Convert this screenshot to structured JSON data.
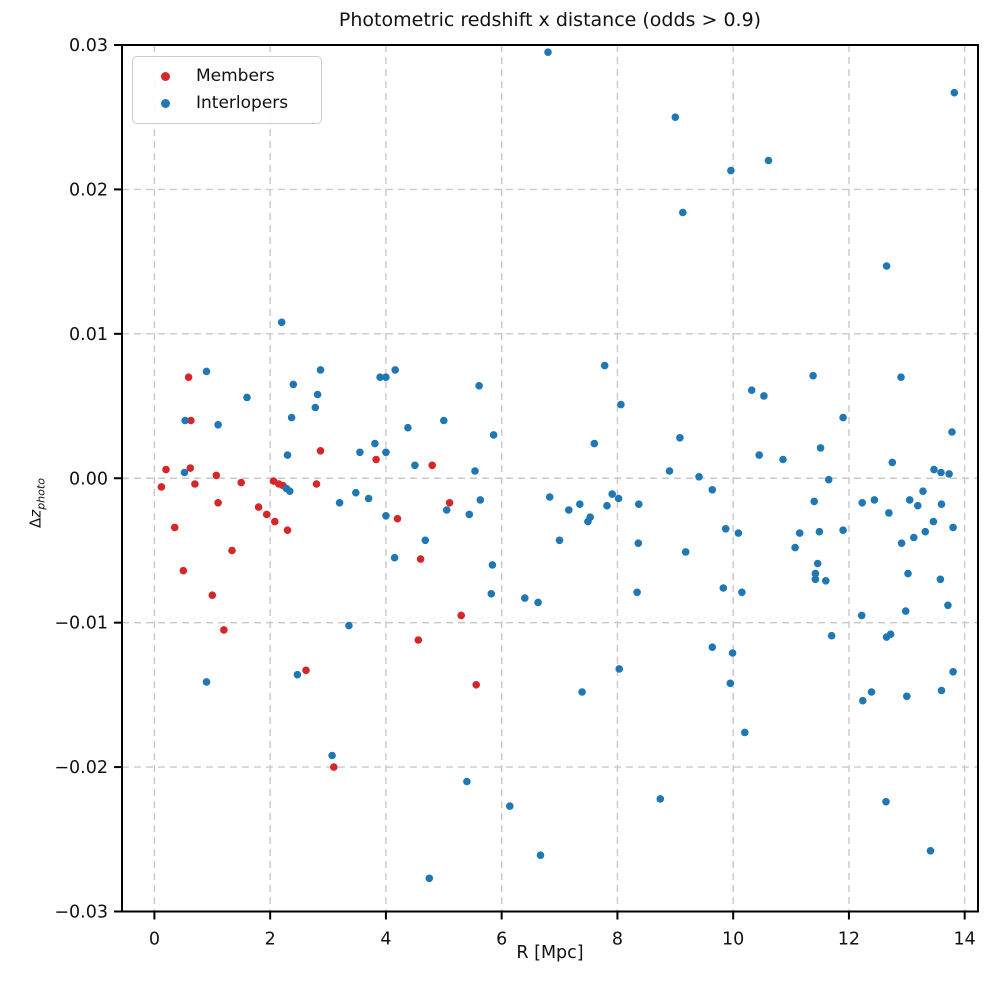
{
  "title": "Photometric redshift x distance (odds > 0.9)",
  "colors": {
    "members": "#d62728",
    "interlopers": "#1f77b4",
    "grid": "#c9c9c9",
    "axis": "#000000",
    "text": "#111111",
    "background": "#ffffff"
  },
  "chart_data": {
    "type": "scatter",
    "title": "Photometric redshift x distance (odds > 0.9)",
    "xlabel": "R [Mpc]",
    "ylabel_delta": "Δ",
    "ylabel_var": "z",
    "ylabel_subscript": "photo",
    "xlim": [
      -0.56,
      14.23
    ],
    "ylim": [
      -0.03,
      0.03
    ],
    "xticks": [
      0,
      2,
      4,
      6,
      8,
      10,
      12,
      14
    ],
    "xtick_labels": [
      "0",
      "2",
      "4",
      "6",
      "8",
      "10",
      "12",
      "14"
    ],
    "yticks": [
      -0.03,
      -0.02,
      -0.01,
      0.0,
      0.01,
      0.02,
      0.03
    ],
    "ytick_labels": [
      "−0.03",
      "−0.02",
      "−0.01",
      "0.00",
      "0.01",
      "0.02",
      "0.03"
    ],
    "grid": true,
    "grid_style": "dashed",
    "legend_position": "upper-left",
    "marker_radius": 3.8,
    "series": [
      {
        "name": "Members",
        "color": "#d62728",
        "points": [
          [
            0.12,
            -0.0006
          ],
          [
            0.2,
            0.0006
          ],
          [
            0.35,
            -0.0034
          ],
          [
            0.5,
            -0.0064
          ],
          [
            0.59,
            0.007
          ],
          [
            0.62,
            0.0007
          ],
          [
            0.63,
            0.004
          ],
          [
            0.7,
            -0.0004
          ],
          [
            1.0,
            -0.0081
          ],
          [
            1.07,
            0.0002
          ],
          [
            1.1,
            -0.0017
          ],
          [
            1.2,
            -0.0105
          ],
          [
            1.34,
            -0.005
          ],
          [
            1.5,
            -0.0003
          ],
          [
            1.8,
            -0.002
          ],
          [
            1.94,
            -0.0025
          ],
          [
            2.06,
            -0.0002
          ],
          [
            2.08,
            -0.003
          ],
          [
            2.15,
            -0.0004
          ],
          [
            2.22,
            -0.0005
          ],
          [
            2.3,
            -0.0036
          ],
          [
            2.62,
            -0.0133
          ],
          [
            2.8,
            -0.0004
          ],
          [
            2.87,
            0.0019
          ],
          [
            3.1,
            -0.02
          ],
          [
            3.83,
            0.0013
          ],
          [
            4.2,
            -0.0028
          ],
          [
            4.56,
            -0.0112
          ],
          [
            4.6,
            -0.0056
          ],
          [
            4.8,
            0.0009
          ],
          [
            5.1,
            -0.0017
          ],
          [
            5.3,
            -0.0095
          ],
          [
            5.56,
            -0.0143
          ]
        ]
      },
      {
        "name": "Interlopers",
        "color": "#1f77b4",
        "points": [
          [
            0.52,
            0.0004
          ],
          [
            0.53,
            0.004
          ],
          [
            0.9,
            0.0074
          ],
          [
            0.9,
            -0.0141
          ],
          [
            1.1,
            0.0037
          ],
          [
            1.6,
            0.0056
          ],
          [
            2.2,
            0.0108
          ],
          [
            2.28,
            -0.0007
          ],
          [
            2.34,
            -0.0009
          ],
          [
            2.3,
            0.0016
          ],
          [
            2.37,
            0.0042
          ],
          [
            2.4,
            0.0065
          ],
          [
            2.47,
            -0.0136
          ],
          [
            2.78,
            0.0049
          ],
          [
            2.82,
            0.0058
          ],
          [
            2.87,
            0.0075
          ],
          [
            3.07,
            -0.0192
          ],
          [
            3.2,
            -0.0017
          ],
          [
            3.36,
            -0.0102
          ],
          [
            3.48,
            -0.001
          ],
          [
            3.55,
            0.0018
          ],
          [
            3.7,
            -0.0014
          ],
          [
            3.81,
            0.0024
          ],
          [
            3.9,
            0.007
          ],
          [
            4.0,
            0.007
          ],
          [
            4.0,
            0.0018
          ],
          [
            4.0,
            -0.0026
          ],
          [
            4.15,
            -0.0055
          ],
          [
            4.16,
            0.0075
          ],
          [
            4.38,
            0.0035
          ],
          [
            4.5,
            0.0009
          ],
          [
            4.68,
            -0.0043
          ],
          [
            4.75,
            -0.0277
          ],
          [
            5.0,
            0.004
          ],
          [
            5.05,
            -0.0022
          ],
          [
            5.4,
            -0.021
          ],
          [
            5.44,
            -0.0025
          ],
          [
            5.54,
            0.0005
          ],
          [
            5.61,
            0.0064
          ],
          [
            5.63,
            -0.0015
          ],
          [
            5.82,
            -0.008
          ],
          [
            5.84,
            -0.006
          ],
          [
            5.86,
            0.003
          ],
          [
            6.14,
            -0.0227
          ],
          [
            6.4,
            -0.0083
          ],
          [
            6.63,
            -0.0086
          ],
          [
            6.67,
            -0.0261
          ],
          [
            6.8,
            0.0295
          ],
          [
            6.83,
            -0.0013
          ],
          [
            7.0,
            -0.0043
          ],
          [
            7.16,
            -0.0022
          ],
          [
            7.35,
            -0.0018
          ],
          [
            7.39,
            -0.0148
          ],
          [
            7.49,
            -0.003
          ],
          [
            7.53,
            -0.0027
          ],
          [
            7.6,
            0.0024
          ],
          [
            7.78,
            0.0078
          ],
          [
            7.82,
            -0.0019
          ],
          [
            7.91,
            -0.0011
          ],
          [
            8.02,
            -0.0014
          ],
          [
            8.03,
            -0.0132
          ],
          [
            8.06,
            0.0051
          ],
          [
            8.34,
            -0.0079
          ],
          [
            8.36,
            -0.0045
          ],
          [
            8.37,
            -0.0018
          ],
          [
            8.74,
            -0.0222
          ],
          [
            8.9,
            0.0005
          ],
          [
            9.0,
            0.025
          ],
          [
            9.08,
            0.0028
          ],
          [
            9.13,
            0.0184
          ],
          [
            9.18,
            -0.0051
          ],
          [
            9.41,
            0.0001
          ],
          [
            9.64,
            -0.0008
          ],
          [
            9.64,
            -0.0117
          ],
          [
            9.83,
            -0.0076
          ],
          [
            9.87,
            -0.0035
          ],
          [
            9.95,
            -0.0142
          ],
          [
            9.96,
            0.0213
          ],
          [
            9.99,
            -0.0121
          ],
          [
            10.09,
            -0.0038
          ],
          [
            10.15,
            -0.0079
          ],
          [
            10.2,
            -0.0176
          ],
          [
            10.32,
            0.0061
          ],
          [
            10.45,
            0.0016
          ],
          [
            10.53,
            0.0057
          ],
          [
            10.61,
            0.022
          ],
          [
            10.86,
            0.0013
          ],
          [
            11.07,
            -0.0048
          ],
          [
            11.15,
            -0.0038
          ],
          [
            11.38,
            0.0071
          ],
          [
            11.4,
            -0.0016
          ],
          [
            11.42,
            -0.0066
          ],
          [
            11.42,
            -0.007
          ],
          [
            11.46,
            -0.0059
          ],
          [
            11.49,
            -0.0037
          ],
          [
            11.51,
            0.0021
          ],
          [
            11.6,
            -0.0071
          ],
          [
            11.65,
            -0.0001
          ],
          [
            11.7,
            -0.0109
          ],
          [
            11.9,
            0.0042
          ],
          [
            11.9,
            -0.0036
          ],
          [
            12.22,
            -0.0095
          ],
          [
            12.23,
            -0.0017
          ],
          [
            12.24,
            -0.0154
          ],
          [
            12.39,
            -0.0148
          ],
          [
            12.44,
            -0.0015
          ],
          [
            12.64,
            -0.0224
          ],
          [
            12.65,
            0.0147
          ],
          [
            12.65,
            -0.011
          ],
          [
            12.69,
            -0.0024
          ],
          [
            12.72,
            -0.0108
          ],
          [
            12.75,
            0.0011
          ],
          [
            12.9,
            0.007
          ],
          [
            12.91,
            -0.0045
          ],
          [
            12.98,
            -0.0092
          ],
          [
            13.0,
            -0.0151
          ],
          [
            13.02,
            -0.0066
          ],
          [
            13.05,
            -0.0015
          ],
          [
            13.12,
            -0.0041
          ],
          [
            13.19,
            -0.0019
          ],
          [
            13.28,
            -0.0009
          ],
          [
            13.32,
            -0.0037
          ],
          [
            13.41,
            -0.0258
          ],
          [
            13.46,
            -0.003
          ],
          [
            13.47,
            0.0006
          ],
          [
            13.58,
            -0.007
          ],
          [
            13.59,
            0.0004
          ],
          [
            13.6,
            -0.0018
          ],
          [
            13.6,
            -0.0147
          ],
          [
            13.71,
            -0.0088
          ],
          [
            13.73,
            0.0003
          ],
          [
            13.78,
            0.0032
          ],
          [
            13.8,
            -0.0034
          ],
          [
            13.8,
            -0.0134
          ],
          [
            13.82,
            0.0267
          ]
        ]
      }
    ]
  }
}
